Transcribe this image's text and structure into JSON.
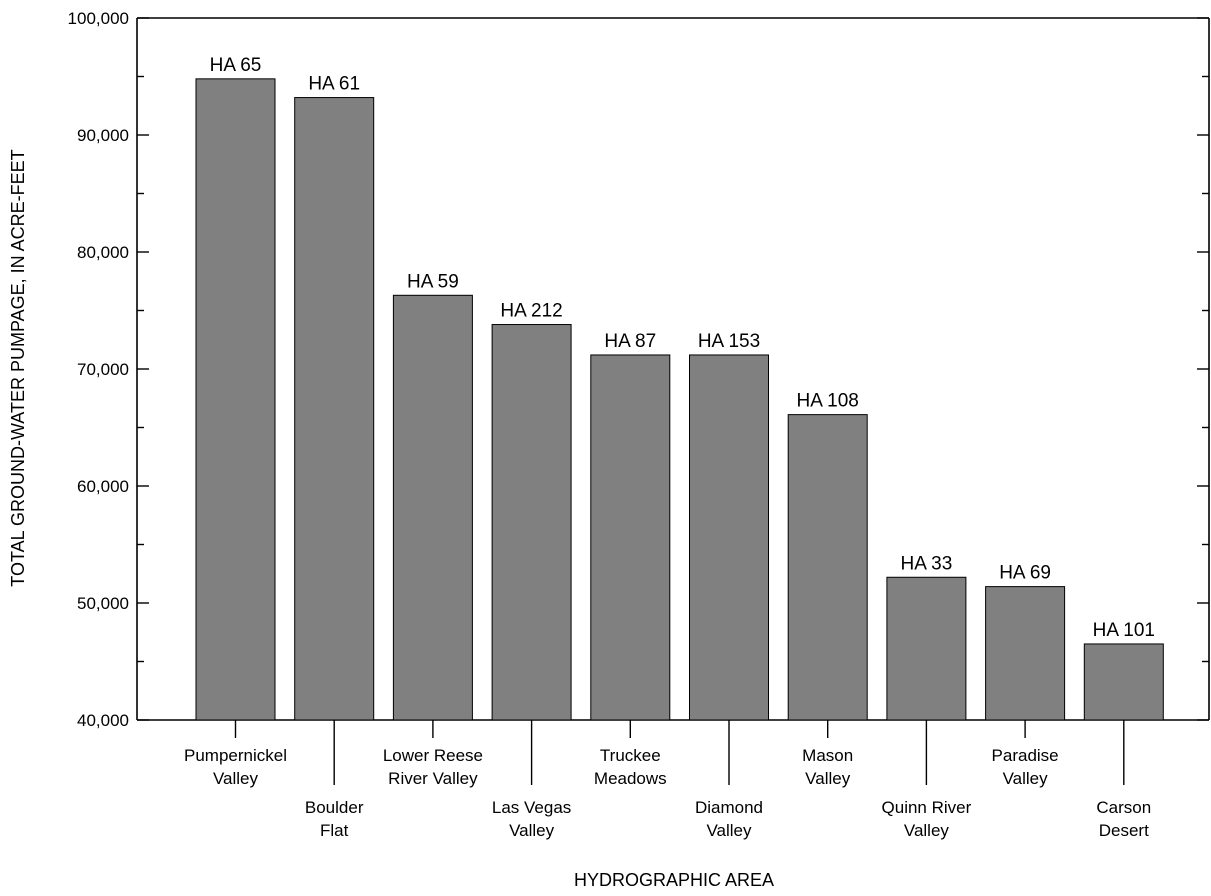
{
  "chart_data": {
    "type": "bar",
    "title": "",
    "xlabel": "HYDROGRAPHIC AREA",
    "ylabel": "TOTAL GROUND-WATER PUMPAGE, IN ACRE-FEET",
    "ylim": [
      40000,
      100000
    ],
    "y_major_ticks": [
      40000,
      50000,
      60000,
      70000,
      80000,
      90000,
      100000
    ],
    "y_tick_labels": [
      "40,000",
      "50,000",
      "60,000",
      "70,000",
      "80,000",
      "90,000",
      "100,000"
    ],
    "y_minor_step": 5000,
    "grid": false,
    "bar_color": "#808080",
    "categories": [
      {
        "label_lines": [
          "Pumpernickel",
          "Valley"
        ],
        "level": "upper"
      },
      {
        "label_lines": [
          "Boulder",
          "Flat"
        ],
        "level": "lower"
      },
      {
        "label_lines": [
          "Lower Reese",
          "River Valley"
        ],
        "level": "upper"
      },
      {
        "label_lines": [
          "Las Vegas",
          "Valley"
        ],
        "level": "lower"
      },
      {
        "label_lines": [
          "Truckee",
          "Meadows"
        ],
        "level": "upper"
      },
      {
        "label_lines": [
          "Diamond",
          "Valley"
        ],
        "level": "lower"
      },
      {
        "label_lines": [
          "Mason",
          "Valley"
        ],
        "level": "upper"
      },
      {
        "label_lines": [
          "Quinn River",
          "Valley"
        ],
        "level": "lower"
      },
      {
        "label_lines": [
          "Paradise",
          "Valley"
        ],
        "level": "upper"
      },
      {
        "label_lines": [
          "Carson",
          "Desert"
        ],
        "level": "lower"
      }
    ],
    "data_labels": [
      "HA 65",
      "HA 61",
      "HA 59",
      "HA 212",
      "HA 87",
      "HA 153",
      "HA 108",
      "HA 33",
      "HA 69",
      "HA 101"
    ],
    "values": [
      94800,
      93200,
      76300,
      73800,
      71200,
      71200,
      66100,
      52200,
      51400,
      46500
    ]
  }
}
